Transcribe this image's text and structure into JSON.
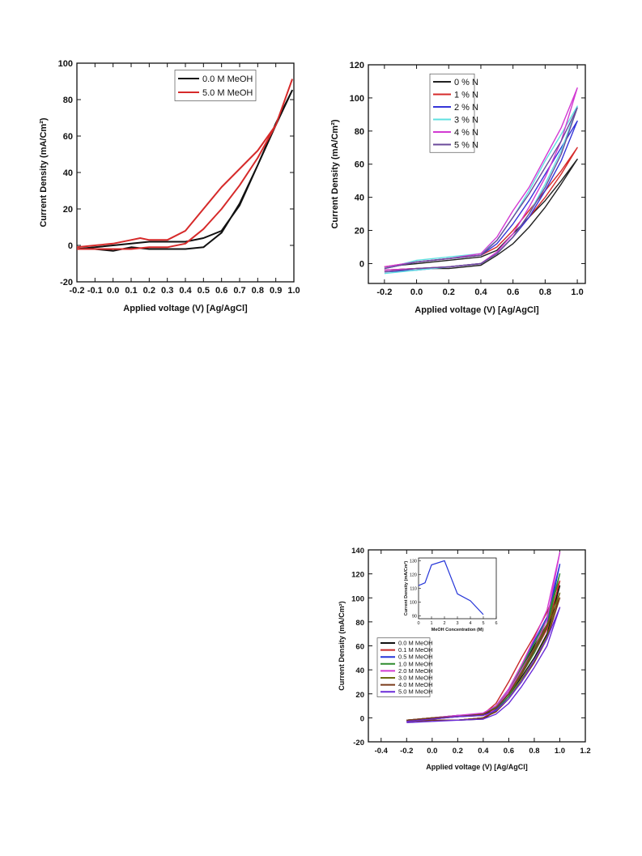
{
  "chart_data": [
    {
      "type": "line",
      "xlabel": "Applied voltage (V) [Ag/AgCl]",
      "ylabel": "Current Density (mA/Cm²)",
      "xlim": [
        -0.2,
        1.0
      ],
      "ylim": [
        -20,
        100
      ],
      "xticks": [
        "-0.2",
        "-0.1",
        "0.0",
        "0.1",
        "0.2",
        "0.3",
        "0.4",
        "0.5",
        "0.6",
        "0.7",
        "0.8",
        "0.9",
        "1.0"
      ],
      "yticks": [
        "-20",
        "0",
        "20",
        "40",
        "60",
        "80",
        "100"
      ],
      "legend": "top-right",
      "series": [
        {
          "name": "0.0 M MeOH",
          "color": "#111111",
          "x": [
            -0.2,
            -0.1,
            0.0,
            0.1,
            0.2,
            0.3,
            0.4,
            0.5,
            0.6,
            0.7,
            0.8,
            0.9,
            0.99,
            0.9,
            0.8,
            0.7,
            0.6,
            0.5,
            0.4,
            0.3,
            0.2,
            0.1,
            0.0,
            -0.1,
            -0.2
          ],
          "y": [
            -2,
            -1,
            0,
            1,
            2,
            2,
            2,
            4,
            8,
            22,
            44,
            67,
            85,
            66,
            44,
            23,
            7,
            -1,
            -2,
            -2,
            -2,
            -1,
            -3,
            -2,
            -2
          ]
        },
        {
          "name": "5.0 M MeOH",
          "color": "#d62a2a",
          "x": [
            -0.2,
            -0.1,
            0.0,
            0.1,
            0.15,
            0.2,
            0.3,
            0.4,
            0.5,
            0.6,
            0.7,
            0.8,
            0.9,
            0.99,
            0.9,
            0.8,
            0.7,
            0.6,
            0.5,
            0.4,
            0.3,
            0.2,
            0.1,
            0.0,
            -0.1,
            -0.2
          ],
          "y": [
            -1,
            0,
            1,
            3,
            4,
            3,
            3,
            8,
            20,
            32,
            42,
            52,
            66,
            91,
            66,
            48,
            33,
            20,
            9,
            1,
            -1,
            -1,
            -2,
            -2,
            -2,
            -2
          ]
        }
      ]
    },
    {
      "type": "line",
      "xlabel": "Applied voltage (V) [Ag/AgCl]",
      "ylabel": "Current Density (mA/Cm²)",
      "xlim": [
        -0.3,
        1.05
      ],
      "ylim": [
        -12,
        120
      ],
      "xticks": [
        "-0.2",
        "0.0",
        "0.2",
        "0.4",
        "0.6",
        "0.8",
        "1.0"
      ],
      "yticks": [
        "0",
        "20",
        "40",
        "60",
        "80",
        "100",
        "120"
      ],
      "legend": "top-left",
      "series": [
        {
          "name": "0 % N",
          "color": "#222222",
          "x": [
            -0.2,
            0.0,
            0.2,
            0.4,
            0.5,
            0.6,
            0.7,
            0.8,
            0.9,
            1.0,
            0.9,
            0.8,
            0.7,
            0.6,
            0.5,
            0.4,
            0.2,
            0.0,
            -0.2
          ],
          "y": [
            -2,
            0,
            2,
            4,
            8,
            18,
            28,
            38,
            50,
            63,
            48,
            34,
            22,
            12,
            5,
            -1,
            -3,
            -3,
            -4
          ]
        },
        {
          "name": "1 % N",
          "color": "#d62a2a",
          "x": [
            -0.2,
            0.0,
            0.2,
            0.4,
            0.5,
            0.6,
            0.7,
            0.8,
            0.9,
            1.0,
            0.9,
            0.8,
            0.7,
            0.6,
            0.5,
            0.4,
            0.2,
            0.0,
            -0.2
          ],
          "y": [
            -2,
            1,
            3,
            5,
            10,
            20,
            32,
            44,
            56,
            70,
            54,
            40,
            28,
            16,
            6,
            0,
            -2,
            -3,
            -4
          ]
        },
        {
          "name": "2 % N",
          "color": "#3535d8",
          "x": [
            -0.2,
            0.0,
            0.2,
            0.4,
            0.5,
            0.6,
            0.7,
            0.8,
            0.9,
            1.0,
            0.9,
            0.8,
            0.7,
            0.6,
            0.5,
            0.4,
            0.2,
            0.0,
            -0.2
          ],
          "y": [
            -3,
            1,
            3,
            5,
            12,
            24,
            38,
            54,
            70,
            86,
            62,
            44,
            28,
            16,
            6,
            0,
            -2,
            -4,
            -5
          ]
        },
        {
          "name": "3 % N",
          "color": "#5fe0e0",
          "x": [
            -0.2,
            0.0,
            0.2,
            0.4,
            0.5,
            0.6,
            0.7,
            0.8,
            0.9,
            1.0,
            0.9,
            0.8,
            0.7,
            0.6,
            0.5,
            0.4,
            0.2,
            0.0,
            -0.2
          ],
          "y": [
            -3,
            2,
            4,
            6,
            14,
            28,
            44,
            62,
            78,
            95,
            68,
            48,
            30,
            16,
            6,
            0,
            -2,
            -4,
            -6
          ]
        },
        {
          "name": "4 % N",
          "color": "#d23ad2",
          "x": [
            -0.2,
            0.0,
            0.2,
            0.4,
            0.5,
            0.6,
            0.7,
            0.8,
            0.9,
            1.0,
            0.9,
            0.8,
            0.7,
            0.6,
            0.5,
            0.4,
            0.2,
            0.0,
            -0.2
          ],
          "y": [
            -2,
            1,
            3,
            6,
            16,
            32,
            46,
            64,
            82,
            106,
            74,
            52,
            34,
            18,
            7,
            0,
            -2,
            -3,
            -4
          ]
        },
        {
          "name": "5 % N",
          "color": "#6a4a9a",
          "x": [
            -0.2,
            0.0,
            0.2,
            0.4,
            0.5,
            0.6,
            0.7,
            0.8,
            0.9,
            1.0,
            0.9,
            0.8,
            0.7,
            0.6,
            0.5,
            0.4,
            0.2,
            0.0,
            -0.2
          ],
          "y": [
            -3,
            1,
            3,
            5,
            14,
            28,
            42,
            58,
            74,
            94,
            66,
            46,
            30,
            16,
            6,
            0,
            -2,
            -3,
            -5
          ]
        }
      ]
    },
    {
      "type": "line",
      "xlabel": "Applied voltage (V) [Ag/AgCl]",
      "ylabel": "Current Density (mA/Cm²)",
      "xlim": [
        -0.5,
        1.2
      ],
      "ylim": [
        -20,
        140
      ],
      "xticks": [
        "-0.4",
        "-0.2",
        "0.0",
        "0.2",
        "0.4",
        "0.6",
        "0.8",
        "1.0",
        "1.2"
      ],
      "yticks": [
        "-20",
        "0",
        "20",
        "40",
        "60",
        "80",
        "100",
        "120",
        "140"
      ],
      "legend": "middle-left",
      "series": [
        {
          "name": "0.0 M MeOH",
          "color": "#111111",
          "x": [
            -0.2,
            0.0,
            0.2,
            0.4,
            0.5,
            0.6,
            0.7,
            0.8,
            0.9,
            1.0,
            0.9,
            0.8,
            0.7,
            0.6,
            0.5,
            0.4,
            0.2,
            0.0,
            -0.2
          ],
          "y": [
            -2,
            -1,
            1,
            2,
            8,
            20,
            40,
            60,
            78,
            110,
            70,
            50,
            34,
            18,
            6,
            -1,
            -2,
            -2,
            -3
          ]
        },
        {
          "name": "0.1 M MeOH",
          "color": "#c62828",
          "x": [
            -0.2,
            0.0,
            0.2,
            0.4,
            0.5,
            0.6,
            0.7,
            0.8,
            0.9,
            1.0,
            0.9,
            0.8,
            0.7,
            0.6,
            0.5,
            0.4,
            0.2,
            0.0,
            -0.2
          ],
          "y": [
            -2,
            0,
            2,
            3,
            12,
            30,
            50,
            68,
            88,
            114,
            74,
            54,
            38,
            22,
            8,
            0,
            -2,
            -2,
            -3
          ]
        },
        {
          "name": "0.5 M MeOH",
          "color": "#2535d8",
          "x": [
            -0.2,
            0.0,
            0.2,
            0.4,
            0.5,
            0.6,
            0.7,
            0.8,
            0.9,
            1.0,
            0.9,
            0.8,
            0.7,
            0.6,
            0.5,
            0.4,
            0.2,
            0.0,
            -0.2
          ],
          "y": [
            -2,
            0,
            2,
            3,
            10,
            24,
            44,
            64,
            84,
            128,
            78,
            56,
            38,
            20,
            7,
            0,
            -2,
            -2,
            -3
          ]
        },
        {
          "name": "1.0 M MeOH",
          "color": "#2e8b2e",
          "x": [
            -0.2,
            0.0,
            0.2,
            0.4,
            0.5,
            0.6,
            0.7,
            0.8,
            0.9,
            1.0,
            0.9,
            0.8,
            0.7,
            0.6,
            0.5,
            0.4,
            0.2,
            0.0,
            -0.2
          ],
          "y": [
            -2,
            0,
            1,
            3,
            9,
            22,
            42,
            62,
            82,
            120,
            76,
            54,
            36,
            18,
            6,
            0,
            -2,
            -2,
            -3
          ]
        },
        {
          "name": "2.0 M MeOH",
          "color": "#d23ad2",
          "x": [
            -0.2,
            0.0,
            0.2,
            0.4,
            0.5,
            0.6,
            0.7,
            0.8,
            0.9,
            1.0,
            0.9,
            0.8,
            0.7,
            0.6,
            0.5,
            0.4,
            0.2,
            0.0,
            -0.2
          ],
          "y": [
            -2,
            0,
            2,
            4,
            10,
            24,
            44,
            66,
            90,
            138,
            82,
            58,
            40,
            22,
            8,
            0,
            -2,
            -2,
            -3
          ]
        },
        {
          "name": "3.0 M MeOH",
          "color": "#6b6b10",
          "x": [
            -0.2,
            0.0,
            0.2,
            0.4,
            0.5,
            0.6,
            0.7,
            0.8,
            0.9,
            1.0,
            0.9,
            0.8,
            0.7,
            0.6,
            0.5,
            0.4,
            0.2,
            0.0,
            -0.2
          ],
          "y": [
            -2,
            0,
            1,
            3,
            8,
            20,
            38,
            58,
            78,
            104,
            68,
            48,
            32,
            16,
            5,
            0,
            -2,
            -2,
            -3
          ]
        },
        {
          "name": "4.0 M MeOH",
          "color": "#7a3b1a",
          "x": [
            -0.2,
            0.0,
            0.2,
            0.4,
            0.5,
            0.6,
            0.7,
            0.8,
            0.9,
            1.0,
            0.9,
            0.8,
            0.7,
            0.6,
            0.5,
            0.4,
            0.2,
            0.0,
            -0.2
          ],
          "y": [
            -2,
            0,
            1,
            3,
            8,
            20,
            36,
            56,
            76,
            100,
            66,
            46,
            30,
            16,
            5,
            0,
            -2,
            -2,
            -3
          ]
        },
        {
          "name": "5.0 M MeOH",
          "color": "#6a2bd8",
          "x": [
            -0.2,
            0.0,
            0.2,
            0.4,
            0.5,
            0.6,
            0.7,
            0.8,
            0.9,
            1.0,
            0.9,
            0.8,
            0.7,
            0.6,
            0.5,
            0.4,
            0.2,
            0.0,
            -0.2
          ],
          "y": [
            -3,
            -1,
            1,
            2,
            6,
            16,
            30,
            48,
            66,
            92,
            60,
            42,
            26,
            12,
            3,
            -1,
            -2,
            -3,
            -4
          ]
        }
      ],
      "inset": {
        "type": "line",
        "xlabel": "MeOH Concentration (M)",
        "ylabel": "Current Density (mA/Cm²)",
        "xlim": [
          0,
          6
        ],
        "ylim": [
          88,
          132
        ],
        "xticks": [
          "0",
          "1",
          "2",
          "3",
          "4",
          "5",
          "6"
        ],
        "yticks": [
          "90",
          "100",
          "110",
          "120",
          "130"
        ],
        "color": "#2535d8",
        "x": [
          0,
          0.5,
          1,
          2,
          3,
          4,
          5
        ],
        "y": [
          112,
          114,
          127,
          130,
          106,
          101,
          91
        ]
      }
    }
  ]
}
